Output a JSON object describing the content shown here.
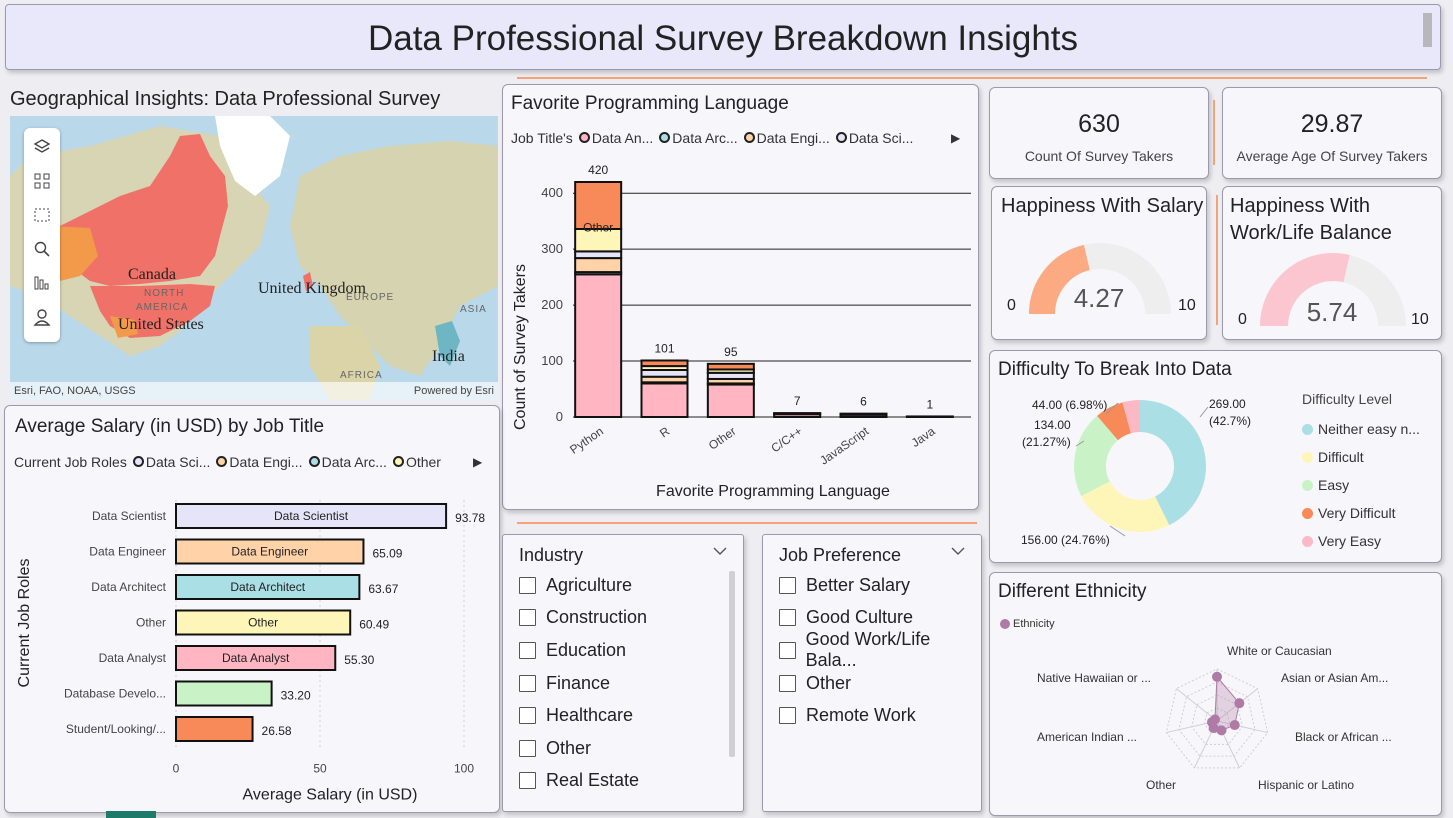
{
  "title": "Data Professional Survey Breakdown Insights",
  "map": {
    "title": "Geographical Insights: Data Professional Survey",
    "labels": {
      "canada": "Canada",
      "uk": "United Kingdom",
      "us": "United States",
      "india": "India",
      "north": "NORTH",
      "america": "AMERICA",
      "europe": "EUROPE",
      "asia": "ASIA",
      "africa": "AFRICA"
    },
    "attribution": "Esri, FAO, NOAA, USGS",
    "powered": "Powered by Esri",
    "powered_brand": "Esri",
    "tools": [
      "layers-icon",
      "qr-select-icon",
      "rect-select-icon",
      "search-icon",
      "bar-legend-icon",
      "person-icon"
    ]
  },
  "lang_chart": {
    "title": "Favorite Programming Language",
    "legend_label": "Job Title's",
    "legend": [
      {
        "name": "Data An...",
        "color": "#ffb5c2"
      },
      {
        "name": "Data Arc...",
        "color": "#a9dfe5"
      },
      {
        "name": "Data Engi...",
        "color": "#ffd2a8"
      },
      {
        "name": "Data Sci...",
        "color": "#e6e4f8"
      }
    ]
  },
  "salary_chart": {
    "title": "Average Salary (in USD) by Job Title",
    "legend_label": "Current Job Roles",
    "legend": [
      {
        "name": "Data Sci...",
        "color": "#e6e4f8"
      },
      {
        "name": "Data Engi...",
        "color": "#ffd2a8"
      },
      {
        "name": "Data Arc...",
        "color": "#a9dfe5"
      },
      {
        "name": "Other",
        "color": "#fdf6b8"
      }
    ]
  },
  "kpis": {
    "count_value": "630",
    "count_label": "Count Of Survey Takers",
    "age_value": "29.87",
    "age_label": "Average Age Of Survey Takers"
  },
  "gauges": {
    "salary": {
      "title": "Happiness With Salary",
      "value": "4.27",
      "min": "0",
      "max": "10",
      "num": 4.27,
      "color": "#fbaa82"
    },
    "wlb": {
      "title_line1": "Happiness With",
      "title_line2": "Work/Life Balance",
      "value": "5.74",
      "min": "0",
      "max": "10",
      "num": 5.74,
      "color": "#fbc6cf"
    }
  },
  "difficulty": {
    "title": "Difficulty To Break Into Data",
    "legend_title": "Difficulty Level",
    "legend": [
      {
        "name": "Neither easy n...",
        "color": "#a9dfe5"
      },
      {
        "name": "Difficult",
        "color": "#fdf6b8"
      },
      {
        "name": "Easy",
        "color": "#c9f3c6"
      },
      {
        "name": "Very Difficult",
        "color": "#f88a5a"
      },
      {
        "name": "Very Easy",
        "color": "#fbb8c5"
      }
    ],
    "labels": {
      "l1a": "269.00",
      "l1b": "(42.7%)",
      "l2": "156.00 (24.76%)",
      "l3a": "134.00",
      "l3b": "(21.27%)",
      "l4": "44.00 (6.98%)"
    }
  },
  "ethnicity": {
    "title": "Different Ethnicity",
    "legend": "Ethnicity",
    "axes": [
      "White or Caucasian",
      "Asian or Asian Am...",
      "Black or African ...",
      "Hispanic or Latino",
      "Other",
      "American Indian ...",
      "Native Hawaiian or ..."
    ]
  },
  "industry": {
    "title": "Industry",
    "items": [
      "Agriculture",
      "Construction",
      "Education",
      "Finance",
      "Healthcare",
      "Other",
      "Real Estate"
    ]
  },
  "job_pref": {
    "title": "Job Preference",
    "items": [
      "Better Salary",
      "Good Culture",
      "Good Work/Life Bala...",
      "Other",
      "Remote Work"
    ]
  },
  "chart_data": [
    {
      "type": "bar",
      "title": "Favorite Programming Language",
      "xlabel": "Favorite Programming Language",
      "ylabel": "Count of Survey Takers",
      "categories": [
        "Python",
        "R",
        "Other",
        "C/C++",
        "JavaScript",
        "Java"
      ],
      "totals": [
        420,
        101,
        95,
        7,
        6,
        1
      ],
      "ylim": [
        0,
        420
      ],
      "yticks": [
        0,
        100,
        200,
        300,
        400
      ],
      "stacked": true,
      "series": [
        {
          "name": "Data Analyst",
          "color": "#ffb5c2",
          "values": [
            255,
            60,
            58,
            5,
            4,
            1
          ]
        },
        {
          "name": "Data Architect",
          "color": "#a9dfe5",
          "values": [
            4,
            2,
            2,
            0,
            0,
            0
          ]
        },
        {
          "name": "Data Engineer",
          "color": "#ffd2a8",
          "values": [
            25,
            10,
            8,
            1,
            1,
            0
          ]
        },
        {
          "name": "Data Scientist",
          "color": "#e6e4f8",
          "values": [
            12,
            12,
            11,
            1,
            1,
            0
          ]
        },
        {
          "name": "Other",
          "color": "#fdf6b8",
          "values": [
            40,
            7,
            6,
            0,
            0,
            0
          ]
        },
        {
          "name": "Student/Looking/None",
          "color": "#f88a5a",
          "values": [
            84,
            10,
            10,
            0,
            0,
            0
          ]
        }
      ],
      "annotations": [
        "Other"
      ]
    },
    {
      "type": "bar",
      "orientation": "horizontal",
      "title": "Average Salary (in USD) by Job Title",
      "xlabel": "Average Salary (in USD)",
      "ylabel": "Current Job Roles",
      "categories": [
        "Data Scientist",
        "Data Engineer",
        "Data Architect",
        "Other",
        "Data Analyst",
        "Database Develo...",
        "Student/Looking/..."
      ],
      "values": [
        93.78,
        65.09,
        63.67,
        60.49,
        55.3,
        33.2,
        26.58
      ],
      "value_labels": [
        "93.78",
        "65.09",
        "63.67",
        "60.49",
        "55.30",
        "33.20",
        "26.58"
      ],
      "bar_labels": [
        "Data Scientist",
        "Data Engineer",
        "Data Architect",
        "Other",
        "Data Analyst",
        "",
        ""
      ],
      "colors": [
        "#e6e4f8",
        "#ffd2a8",
        "#a9dfe5",
        "#fdf6b8",
        "#ffb5c2",
        "#c9f3c6",
        "#f88a5a"
      ],
      "xlim": [
        0,
        100
      ],
      "xticks": [
        0,
        50,
        100
      ]
    },
    {
      "type": "pie",
      "title": "Difficulty To Break Into Data",
      "donut": true,
      "categories": [
        "Neither easy nor difficult",
        "Difficult",
        "Easy",
        "Very Difficult",
        "Very Easy"
      ],
      "values": [
        269,
        156,
        134,
        44,
        27
      ],
      "colors": [
        "#a9dfe5",
        "#fdf6b8",
        "#c9f3c6",
        "#f88a5a",
        "#fbb8c5"
      ]
    },
    {
      "type": "radar",
      "title": "Different Ethnicity",
      "categories": [
        "White or Caucasian",
        "Asian or Asian American",
        "Black or African American",
        "Hispanic or Latino",
        "Other",
        "American Indian or Alaska Native",
        "Native Hawaiian or Pacific Islander"
      ],
      "values": [
        0.85,
        0.55,
        0.35,
        0.2,
        0.15,
        0.1,
        0.05
      ],
      "color": "#b07aa6"
    }
  ]
}
